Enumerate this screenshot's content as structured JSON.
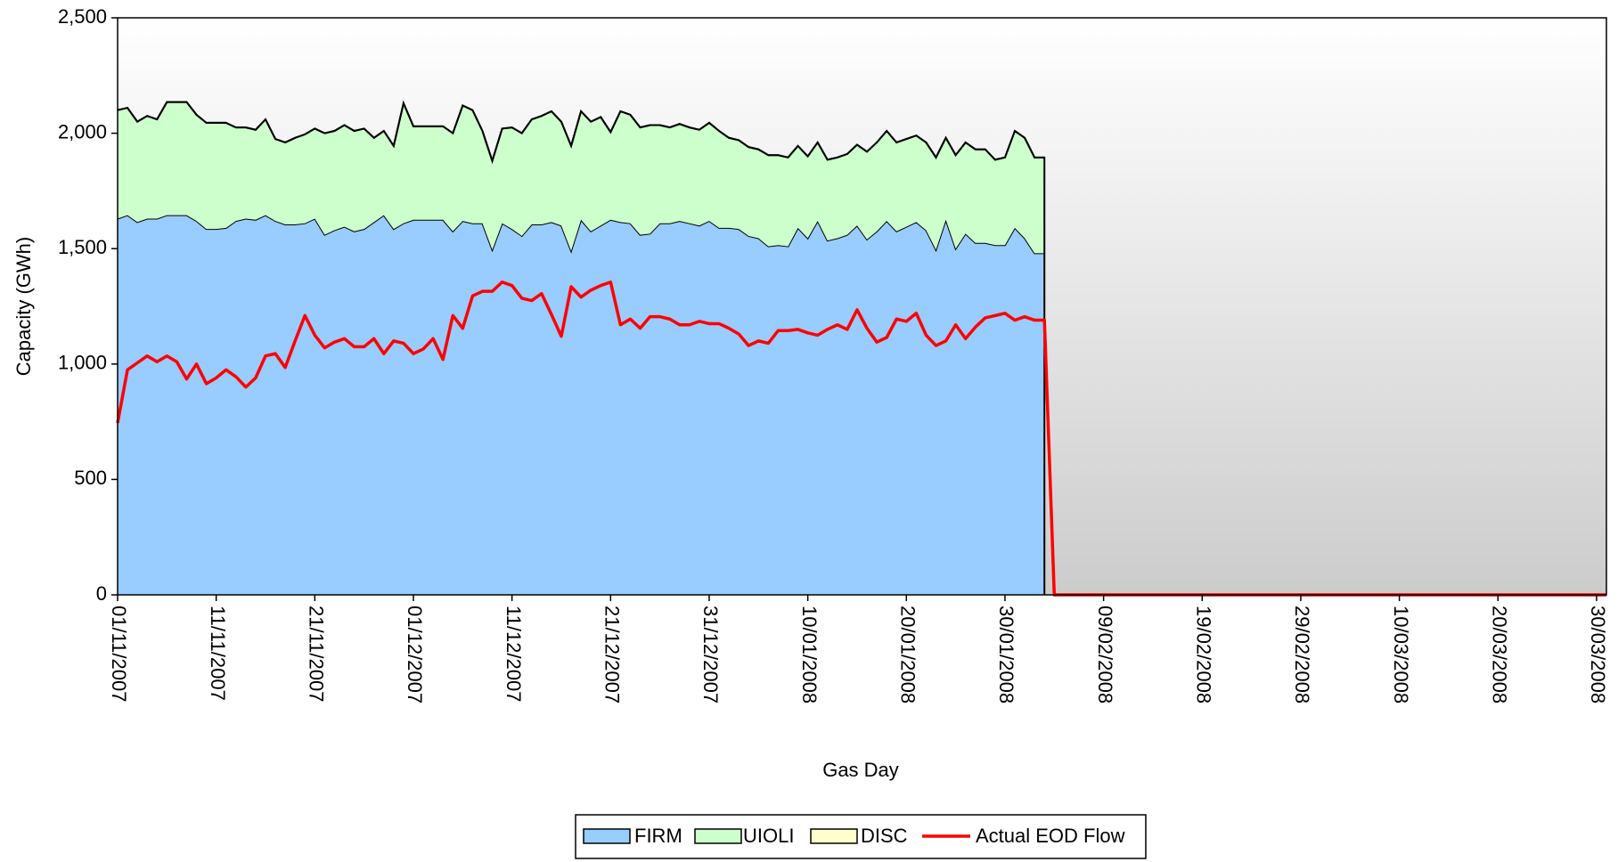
{
  "chart_data": {
    "type": "area",
    "stacked": true,
    "x_label": "Gas Day",
    "y_label": "Capacity (GWh)",
    "categories": [
      "01/11/2007",
      null,
      null,
      null,
      null,
      null,
      null,
      null,
      null,
      null,
      "11/11/2007",
      null,
      null,
      null,
      null,
      null,
      null,
      null,
      null,
      null,
      "21/11/2007",
      null,
      null,
      null,
      null,
      null,
      null,
      null,
      null,
      null,
      "01/12/2007",
      null,
      null,
      null,
      null,
      null,
      null,
      null,
      null,
      null,
      "11/12/2007",
      null,
      null,
      null,
      null,
      null,
      null,
      null,
      null,
      null,
      "21/12/2007",
      null,
      null,
      null,
      null,
      null,
      null,
      null,
      null,
      null,
      "31/12/2007",
      null,
      null,
      null,
      null,
      null,
      null,
      null,
      null,
      null,
      "10/01/2008",
      null,
      null,
      null,
      null,
      null,
      null,
      null,
      null,
      null,
      "20/01/2008",
      null,
      null,
      null,
      null,
      null,
      null,
      null,
      null,
      null,
      "30/01/2008",
      null,
      null,
      null,
      null,
      null,
      null,
      null,
      null,
      null,
      "09/02/2008",
      null,
      null,
      null,
      null,
      null,
      null,
      null,
      null,
      null,
      "19/02/2008",
      null,
      null,
      null,
      null,
      null,
      null,
      null,
      null,
      null,
      "29/02/2008",
      null,
      null,
      null,
      null,
      null,
      null,
      null,
      null,
      null,
      "10/03/2008",
      null,
      null,
      null,
      null,
      null,
      null,
      null,
      null,
      null,
      "20/03/2008",
      null,
      null,
      null,
      null,
      null,
      null,
      null,
      null,
      null,
      "30/03/2008",
      null
    ],
    "series": [
      {
        "name": "FIRM",
        "type": "area",
        "color": "#99ccff",
        "values": [
          1630,
          1645,
          1615,
          1630,
          1630,
          1645,
          1645,
          1645,
          1620,
          1585,
          1585,
          1590,
          1620,
          1630,
          1625,
          1645,
          1620,
          1605,
          1605,
          1610,
          1630,
          1560,
          1580,
          1595,
          1575,
          1585,
          1615,
          1645,
          1585,
          1610,
          1625,
          1625,
          1625,
          1625,
          1575,
          1620,
          1610,
          1610,
          1495,
          1610,
          1585,
          1555,
          1605,
          1605,
          1615,
          1600,
          1490,
          1625,
          1575,
          1600,
          1625,
          1615,
          1610,
          1560,
          1565,
          1610,
          1610,
          1620,
          1610,
          1600,
          1620,
          1590,
          1590,
          1585,
          1555,
          1545,
          1510,
          1515,
          1510,
          1590,
          1545,
          1620,
          1535,
          1545,
          1560,
          1600,
          1540,
          1575,
          1620,
          1575,
          1595,
          1615,
          1580,
          1495,
          1625,
          1500,
          1565,
          1525,
          1525,
          1515,
          1515,
          1590,
          1545,
          1480,
          1480,
          null,
          null,
          null,
          null,
          null,
          null,
          null,
          null,
          null,
          null,
          null,
          null,
          null,
          null,
          null,
          null,
          null,
          null,
          null,
          null,
          null,
          null,
          null,
          null,
          null,
          null,
          null,
          null,
          null,
          null,
          null,
          null,
          null,
          null,
          null,
          null,
          null,
          null,
          null,
          null,
          null,
          null,
          null,
          null,
          null,
          null,
          null,
          null,
          null,
          null,
          null,
          null,
          null,
          null,
          null,
          null,
          null
        ]
      },
      {
        "name": "UIOLI",
        "type": "area",
        "color": "#ccffcc",
        "values": [
          470,
          465,
          435,
          445,
          430,
          490,
          490,
          490,
          460,
          460,
          460,
          455,
          405,
          395,
          390,
          415,
          355,
          355,
          375,
          385,
          390,
          440,
          430,
          440,
          435,
          435,
          365,
          365,
          360,
          520,
          405,
          405,
          405,
          405,
          425,
          500,
          490,
          400,
          385,
          410,
          440,
          445,
          455,
          470,
          480,
          450,
          455,
          470,
          475,
          470,
          380,
          480,
          470,
          465,
          470,
          425,
          415,
          420,
          415,
          415,
          425,
          420,
          390,
          385,
          385,
          385,
          395,
          390,
          385,
          355,
          355,
          340,
          350,
          350,
          350,
          350,
          380,
          385,
          390,
          385,
          380,
          375,
          380,
          400,
          355,
          405,
          395,
          405,
          405,
          370,
          380,
          420,
          435,
          415,
          415,
          null,
          null,
          null,
          null,
          null,
          null,
          null,
          null,
          null,
          null,
          null,
          null,
          null,
          null,
          null,
          null,
          null,
          null,
          null,
          null,
          null,
          null,
          null,
          null,
          null,
          null,
          null,
          null,
          null,
          null,
          null,
          null,
          null,
          null,
          null,
          null,
          null,
          null,
          null,
          null,
          null,
          null,
          null,
          null,
          null,
          null,
          null,
          null,
          null,
          null,
          null,
          null,
          null,
          null,
          null,
          null,
          null
        ]
      },
      {
        "name": "DISC",
        "type": "area",
        "color": "#ffffcc",
        "values": [
          0,
          0,
          0,
          0,
          0,
          0,
          0,
          0,
          0,
          0,
          0,
          0,
          0,
          0,
          0,
          0,
          0,
          0,
          0,
          0,
          0,
          0,
          0,
          0,
          0,
          0,
          0,
          0,
          0,
          0,
          0,
          0,
          0,
          0,
          0,
          0,
          0,
          0,
          0,
          0,
          0,
          0,
          0,
          0,
          0,
          0,
          0,
          0,
          0,
          0,
          0,
          0,
          0,
          0,
          0,
          0,
          0,
          0,
          0,
          0,
          0,
          0,
          0,
          0,
          0,
          0,
          0,
          0,
          0,
          0,
          0,
          0,
          0,
          0,
          0,
          0,
          0,
          0,
          0,
          0,
          0,
          0,
          0,
          0,
          0,
          0,
          0,
          0,
          0,
          0,
          0,
          0,
          0,
          0,
          0,
          null,
          null,
          null,
          null,
          null,
          null,
          null,
          null,
          null,
          null,
          null,
          null,
          null,
          null,
          null,
          null,
          null,
          null,
          null,
          null,
          null,
          null,
          null,
          null,
          null,
          null,
          null,
          null,
          null,
          null,
          null,
          null,
          null,
          null,
          null,
          null,
          null,
          null,
          null,
          null,
          null,
          null,
          null,
          null,
          null,
          null,
          null,
          null,
          null,
          null,
          null,
          null,
          null,
          null,
          null,
          null,
          null
        ]
      },
      {
        "name": "Actual EOD Flow",
        "type": "line",
        "color": "#ff0000",
        "values": [
          745,
          975,
          1005,
          1035,
          1010,
          1035,
          1010,
          935,
          1000,
          915,
          940,
          975,
          945,
          900,
          940,
          1035,
          1045,
          985,
          1100,
          1210,
          1125,
          1070,
          1095,
          1110,
          1075,
          1075,
          1110,
          1045,
          1100,
          1090,
          1045,
          1065,
          1110,
          1020,
          1210,
          1155,
          1295,
          1315,
          1315,
          1355,
          1340,
          1285,
          1275,
          1305,
          1215,
          1120,
          1335,
          1290,
          1320,
          1340,
          1355,
          1170,
          1195,
          1155,
          1205,
          1205,
          1195,
          1170,
          1170,
          1185,
          1175,
          1175,
          1155,
          1130,
          1080,
          1100,
          1090,
          1145,
          1145,
          1150,
          1135,
          1125,
          1150,
          1170,
          1150,
          1235,
          1155,
          1095,
          1115,
          1195,
          1185,
          1220,
          1125,
          1080,
          1100,
          1170,
          1110,
          1160,
          1200,
          1210,
          1220,
          1190,
          1205,
          1190,
          1190,
          0,
          0,
          0,
          0,
          0,
          0,
          0,
          0,
          0,
          0,
          0,
          0,
          0,
          0,
          0,
          0,
          0,
          0,
          0,
          0,
          0,
          0,
          0,
          0,
          0,
          0,
          0,
          0,
          0,
          0,
          0,
          0,
          0,
          0,
          0,
          0,
          0,
          0,
          0,
          0,
          0,
          0,
          0,
          0,
          0,
          0,
          0,
          0,
          0,
          0,
          0,
          0,
          0,
          0,
          0,
          0,
          0
        ]
      }
    ],
    "ylim": [
      0,
      2500
    ],
    "yticks": [
      0,
      500,
      {
        "value": 1000,
        "label": "1,000"
      },
      {
        "value": 1500,
        "label": "1,500"
      },
      {
        "value": 2000,
        "label": "2,000"
      },
      {
        "value": 2500,
        "label": "2,500"
      }
    ],
    "legend": "bottom"
  }
}
